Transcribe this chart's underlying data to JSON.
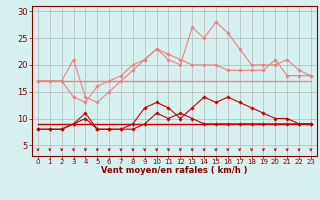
{
  "x": [
    0,
    1,
    2,
    3,
    4,
    5,
    6,
    7,
    8,
    9,
    10,
    11,
    12,
    13,
    14,
    15,
    16,
    17,
    18,
    19,
    20,
    21,
    22,
    23
  ],
  "series": [
    {
      "y": [
        17,
        17,
        17,
        17,
        17,
        17,
        17,
        17,
        17,
        17,
        17,
        17,
        17,
        17,
        17,
        17,
        17,
        17,
        17,
        17,
        17,
        17,
        17,
        17
      ],
      "color": "#f08080",
      "linewidth": 1.0,
      "marker": null
    },
    {
      "y": [
        17,
        17,
        17,
        14,
        13,
        16,
        17,
        18,
        20,
        21,
        23,
        22,
        21,
        20,
        20,
        20,
        19,
        19,
        19,
        19,
        21,
        18,
        18,
        18
      ],
      "color": "#f08080",
      "linewidth": 0.8,
      "marker": "D"
    },
    {
      "y": [
        17,
        17,
        17,
        21,
        14,
        13,
        15,
        17,
        19,
        21,
        23,
        21,
        20,
        27,
        25,
        28,
        26,
        23,
        20,
        20,
        20,
        21,
        19,
        18
      ],
      "color": "#f08080",
      "linewidth": 0.8,
      "marker": "D"
    },
    {
      "y": [
        9,
        9,
        9,
        9,
        9,
        9,
        9,
        9,
        9,
        9,
        9,
        9,
        9,
        9,
        9,
        9,
        9,
        9,
        9,
        9,
        9,
        9,
        9,
        9
      ],
      "color": "#cc0000",
      "linewidth": 1.0,
      "marker": null
    },
    {
      "y": [
        8,
        8,
        8,
        9,
        10,
        8,
        8,
        8,
        8,
        9,
        11,
        10,
        11,
        10,
        9,
        9,
        9,
        9,
        9,
        9,
        9,
        9,
        9,
        9
      ],
      "color": "#cc0000",
      "linewidth": 0.8,
      "marker": "D"
    },
    {
      "y": [
        8,
        8,
        8,
        9,
        11,
        8,
        8,
        8,
        9,
        12,
        13,
        12,
        10,
        12,
        14,
        13,
        14,
        13,
        12,
        11,
        10,
        10,
        9,
        9
      ],
      "color": "#cc0000",
      "linewidth": 0.8,
      "marker": "D"
    }
  ],
  "xlabel": "Vent moyen/en rafales ( km/h )",
  "bg_color": "#d6f0ef",
  "grid_color": "#aaaaaa",
  "yticks": [
    5,
    10,
    15,
    20,
    25,
    30
  ],
  "xlim": [
    -0.5,
    23.5
  ],
  "ylim": [
    3.0,
    31.0
  ],
  "arrow_color": "#cc0000",
  "label_color": "#880000",
  "tick_fontsize": 5.0,
  "xlabel_fontsize": 6.0
}
